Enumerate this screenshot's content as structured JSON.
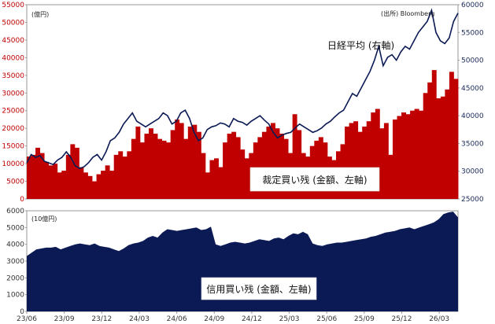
{
  "source_note": "(出所) Bloomberg",
  "chart_data": [
    {
      "type": "bar",
      "unit_label": "(億円)",
      "ylim": [
        0,
        55000
      ],
      "yticks": [
        0,
        5000,
        10000,
        15000,
        20000,
        25000,
        30000,
        35000,
        40000,
        45000,
        50000,
        55000
      ],
      "series": [
        {
          "name": "裁定買い残 (金額、左軸)",
          "color": "#c00000",
          "values": [
            12000,
            12500,
            14500,
            13000,
            10500,
            9500,
            10000,
            7500,
            8000,
            12500,
            15500,
            14500,
            9000,
            7500,
            6500,
            5000,
            7000,
            8000,
            9500,
            8000,
            12500,
            13500,
            12000,
            13500,
            17000,
            20500,
            16000,
            18500,
            20000,
            18500,
            17000,
            16500,
            16000,
            19500,
            22500,
            21500,
            17000,
            20500,
            21000,
            19000,
            13000,
            7500,
            11000,
            11500,
            9000,
            16000,
            18500,
            19000,
            17500,
            14000,
            11500,
            13000,
            16000,
            17500,
            19000,
            20500,
            21500,
            20000,
            18500,
            17000,
            13000,
            24000,
            19500,
            13000,
            12000,
            15000,
            16500,
            17500,
            16000,
            12000,
            11000,
            13500,
            15500,
            20500,
            21500,
            22000,
            19000,
            20500,
            22000,
            24500,
            25500,
            20000,
            21500,
            12500,
            22500,
            23500,
            24500,
            24000,
            25000,
            25500,
            25000,
            30000,
            33000,
            36500,
            28500,
            29000,
            31000,
            36000,
            34000
          ]
        },
        {
          "name": "日経平均 (右軸)",
          "axis": "right",
          "color": "#0b1a55",
          "values": [
            31500,
            33000,
            32500,
            32800,
            31800,
            31500,
            31200,
            32000,
            32500,
            33500,
            32500,
            31000,
            30500,
            30800,
            31500,
            32500,
            33000,
            32000,
            33500,
            35500,
            36000,
            37000,
            38500,
            39500,
            40500,
            39000,
            38500,
            38000,
            38500,
            39000,
            39500,
            40500,
            40000,
            38500,
            39000,
            40500,
            41000,
            39500,
            37000,
            35500,
            36000,
            37500,
            38000,
            38200,
            38700,
            38500,
            38000,
            39500,
            39000,
            38800,
            38300,
            39000,
            39500,
            40000,
            39200,
            38500,
            37000,
            36000,
            36500,
            36800,
            37000,
            37800,
            38500,
            38000,
            37500,
            37000,
            37300,
            37800,
            38500,
            39000,
            39800,
            40500,
            41000,
            42500,
            44000,
            43500,
            45000,
            46500,
            48000,
            50000,
            52500,
            49000,
            50500,
            51000,
            50000,
            51500,
            52500,
            52000,
            53500,
            55000,
            56000,
            57000,
            59000,
            55000,
            53500,
            53000,
            54000,
            57000,
            58500
          ],
          "ylim": [
            25000,
            60000
          ],
          "yticks": [
            25000,
            30000,
            35000,
            40000,
            45000,
            50000,
            55000,
            60000
          ]
        }
      ],
      "annotations": [
        "日経平均 (右軸)",
        "裁定買い残 (金額、左軸)"
      ]
    },
    {
      "type": "area",
      "unit_label": "(10億円)",
      "ylim": [
        0,
        6000
      ],
      "yticks": [
        0,
        1000,
        2000,
        3000,
        4000,
        5000,
        6000
      ],
      "series": [
        {
          "name": "信用買い残 (金額、左軸)",
          "color": "#0b1a55",
          "values": [
            3300,
            3500,
            3700,
            3750,
            3800,
            3800,
            3850,
            3700,
            3800,
            3900,
            4000,
            4050,
            4000,
            3950,
            4050,
            3900,
            3850,
            3800,
            3700,
            3600,
            3750,
            3950,
            4050,
            4100,
            4200,
            4400,
            4500,
            4400,
            4700,
            4900,
            4850,
            4800,
            4850,
            4900,
            4950,
            5000,
            4850,
            4900,
            5050,
            4000,
            3900,
            4000,
            4100,
            4150,
            4100,
            4050,
            4100,
            4200,
            4300,
            4250,
            4200,
            4350,
            4400,
            4300,
            4500,
            4650,
            4600,
            4750,
            4600,
            4050,
            3950,
            3900,
            4000,
            4050,
            4100,
            4100,
            4150,
            4200,
            4250,
            4300,
            4350,
            4450,
            4500,
            4600,
            4700,
            4750,
            4800,
            4900,
            4950,
            5000,
            4900,
            5000,
            5100,
            5200,
            5300,
            5500,
            5800,
            5900,
            5950,
            5600
          ]
        }
      ],
      "xticks": [
        "23/06",
        "23/09",
        "23/12",
        "24/03",
        "24/06",
        "24/09",
        "24/12",
        "25/03",
        "25/06",
        "25/09",
        "25/12",
        "26/03"
      ],
      "annotations": [
        "信用買い残 (金額、左軸)"
      ]
    }
  ]
}
